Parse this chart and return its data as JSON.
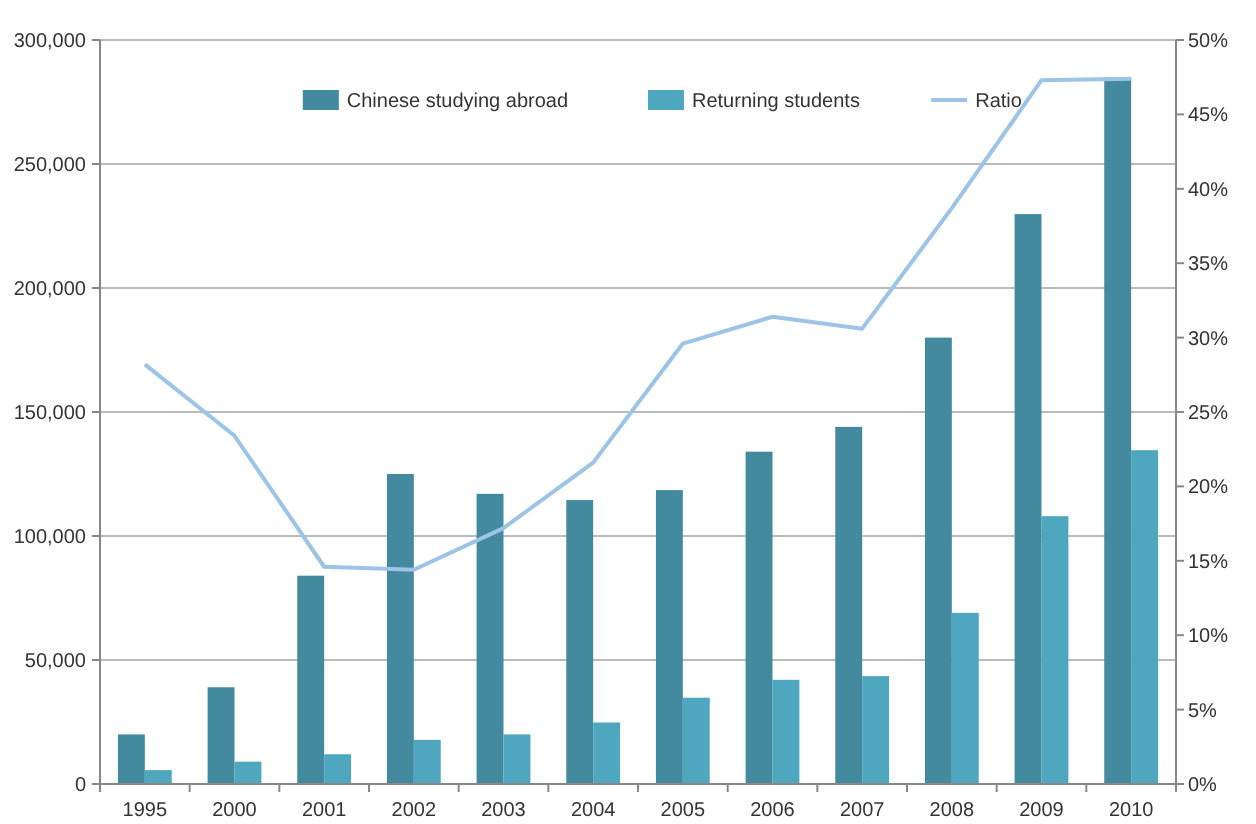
{
  "chart_data": {
    "type": "bar",
    "categories": [
      "1995",
      "2000",
      "2001",
      "2002",
      "2003",
      "2004",
      "2005",
      "2006",
      "2007",
      "2008",
      "2009",
      "2010"
    ],
    "series": [
      {
        "name": "Chinese studying abroad",
        "color": "#438a9e",
        "values": [
          20000,
          39000,
          84000,
          125000,
          117000,
          114500,
          118500,
          134000,
          144000,
          180000,
          229800,
          285000
        ]
      },
      {
        "name": "Returning students",
        "color": "#4ea7bf",
        "values": [
          5600,
          9000,
          12000,
          17800,
          20000,
          24800,
          34800,
          42000,
          43500,
          69000,
          108000,
          134600
        ]
      },
      {
        "name": "Ratio",
        "type": "line",
        "axis": "y2",
        "color": "#9dc3e6",
        "values": [
          28.2,
          23.4,
          14.6,
          14.4,
          17.2,
          21.6,
          29.6,
          31.4,
          30.6,
          38.7,
          47.3,
          47.4
        ]
      }
    ],
    "ylim": [
      0,
      300000
    ],
    "yticks": [
      {
        "value": 0,
        "label": "0"
      },
      {
        "value": 50000,
        "label": "50,000"
      },
      {
        "value": 100000,
        "label": "100,000"
      },
      {
        "value": 150000,
        "label": "150,000"
      },
      {
        "value": 200000,
        "label": "200,000"
      },
      {
        "value": 250000,
        "label": "250,000"
      },
      {
        "value": 300000,
        "label": "300,000"
      }
    ],
    "y2lim": [
      0,
      50
    ],
    "y2ticks": [
      {
        "value": 0,
        "label": "0%"
      },
      {
        "value": 5,
        "label": "5%"
      },
      {
        "value": 10,
        "label": "10%"
      },
      {
        "value": 15,
        "label": "15%"
      },
      {
        "value": 20,
        "label": "20%"
      },
      {
        "value": 25,
        "label": "25%"
      },
      {
        "value": 30,
        "label": "30%"
      },
      {
        "value": 35,
        "label": "35%"
      },
      {
        "value": 40,
        "label": "40%"
      },
      {
        "value": 45,
        "label": "45%"
      },
      {
        "value": 50,
        "label": "50%"
      }
    ],
    "grid": "y",
    "legend": "top",
    "marker": "none",
    "line_style": "solid"
  }
}
